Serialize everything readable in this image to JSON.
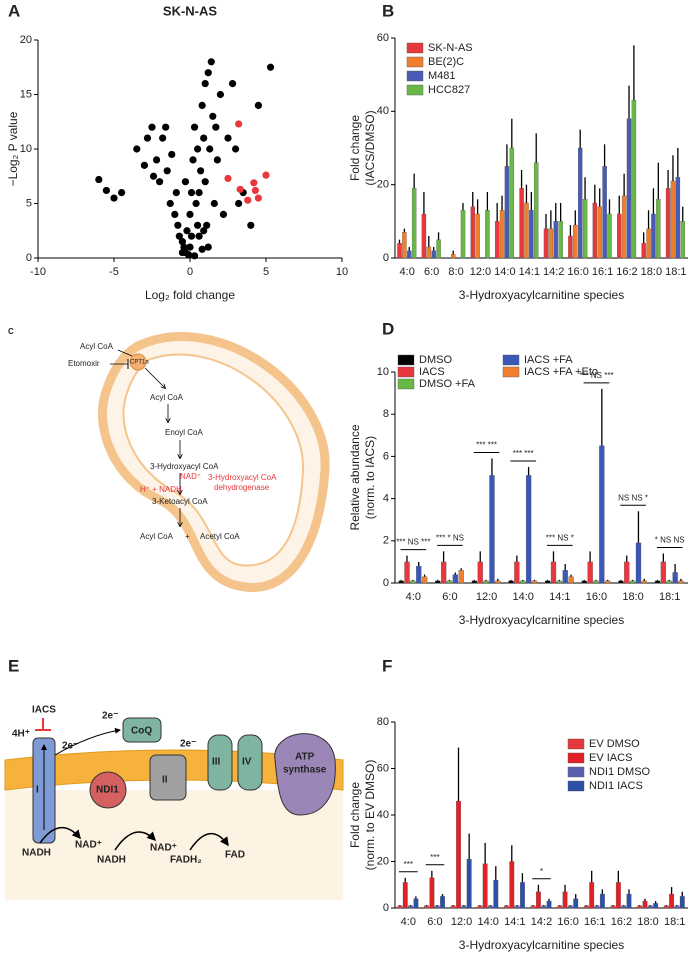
{
  "chart_data": [
    {
      "type": "scatter",
      "panel": "A",
      "title": "SK-N-AS",
      "xlabel": "Log₂ fold change",
      "ylabel": [
        "−Log₂ P value"
      ],
      "xlim": [
        -10,
        10
      ],
      "xticks": [
        -10,
        -5,
        0,
        5,
        10
      ],
      "ylim": [
        0,
        20
      ],
      "yticks": [
        0,
        5,
        10,
        15,
        20
      ],
      "series": [
        {
          "color": "#000000",
          "x": [
            -6,
            -5.5,
            -5,
            -4.5,
            -3.5,
            -3,
            -2.8,
            -2.5,
            -2.2,
            -2,
            -1.8,
            -1.5,
            -1.3,
            -1.2,
            -1,
            -0.9,
            -0.8,
            -0.7,
            -0.5,
            -0.4,
            -0.3,
            -0.2,
            -0.1,
            0,
            0,
            0.1,
            0.2,
            0.3,
            0.4,
            0.5,
            0.6,
            0.7,
            0.8,
            0.9,
            1,
            1,
            1.1,
            1.2,
            1.3,
            1.5,
            1.6,
            1.8,
            2,
            2.2,
            2.5,
            3,
            3.5,
            4,
            4.5,
            5.3,
            -0.5,
            0.3,
            0.8,
            1.2,
            0.5,
            -0.3,
            0.1,
            0.6,
            1.4,
            0.9,
            2.8,
            3.2,
            -1.6,
            -2.4,
            1.7
          ],
          "y": [
            7.2,
            6.2,
            5.5,
            6,
            10,
            8.5,
            11,
            12,
            9,
            7,
            11,
            8,
            5,
            9.5,
            4,
            6,
            3,
            2,
            1.5,
            1,
            0.5,
            2.5,
            0.3,
            1,
            4,
            6,
            9,
            12,
            5,
            3,
            2,
            8,
            14,
            11,
            16,
            7,
            3,
            1,
            10,
            13,
            5,
            9,
            15,
            4,
            11,
            10,
            6,
            3,
            14,
            17.5,
            0.5,
            0.2,
            0.8,
            17,
            10,
            7,
            2,
            6,
            18,
            2.5,
            16,
            5,
            12,
            7.5,
            12
          ]
        },
        {
          "color": "#e8383d",
          "x": [
            3.2,
            2.5,
            3.3,
            4.2,
            4.5,
            5.0,
            4.3,
            3.8
          ],
          "y": [
            12.3,
            7.3,
            6.3,
            6.9,
            5.5,
            7.6,
            6.2,
            5.3
          ]
        }
      ]
    },
    {
      "type": "bar",
      "panel": "B",
      "xlabel": "3-Hydroxyacylcarnitine species",
      "ylabel": [
        "Fold change",
        "(IACS/DMSO)"
      ],
      "ylim": [
        0,
        60
      ],
      "yticks": [
        0,
        20,
        40,
        60
      ],
      "legend": "upper left",
      "categories": [
        "4:0",
        "6:0",
        "8:0",
        "12:0",
        "14:0",
        "14:1",
        "14:2",
        "16:0",
        "16:1",
        "16:2",
        "18:0",
        "18:1"
      ],
      "series": [
        {
          "name": "SK-N-AS",
          "color": "#e8383d",
          "values": [
            4,
            12,
            0,
            14,
            10,
            19,
            8,
            6,
            15,
            12,
            4,
            19
          ],
          "errors": [
            1,
            6,
            0,
            4,
            5,
            5,
            4,
            3,
            5,
            5,
            3,
            5
          ]
        },
        {
          "name": "BE(2)C",
          "color": "#f07f2d",
          "values": [
            7,
            3,
            1,
            12,
            13,
            15,
            8,
            9,
            14,
            17,
            8,
            21
          ],
          "errors": [
            1,
            3,
            1,
            4,
            4,
            5,
            5,
            4,
            5,
            6,
            5,
            7
          ]
        },
        {
          "name": "M481",
          "color": "#4a5bb5",
          "values": [
            2,
            2,
            0,
            0,
            25,
            13,
            10,
            30,
            25,
            38,
            12,
            22
          ],
          "errors": [
            1,
            1,
            0,
            0,
            6,
            5,
            5,
            5,
            6,
            9,
            7,
            8
          ]
        },
        {
          "name": "HCC827",
          "color": "#68b845",
          "values": [
            19,
            5,
            13,
            13,
            30,
            26,
            10,
            16,
            12,
            43,
            16,
            10
          ],
          "errors": [
            4,
            2,
            2,
            5,
            8,
            8,
            5,
            6,
            4,
            15,
            10,
            4
          ]
        }
      ]
    },
    {
      "type": "bar",
      "panel": "D",
      "xlabel": "3-Hydroxyacylcarnitine species",
      "ylabel": [
        "Relative abundance",
        "(norm. to IACS)"
      ],
      "ylim": [
        0,
        10
      ],
      "yticks": [
        0,
        2,
        4,
        6,
        8,
        10
      ],
      "legend": "top",
      "categories": [
        "4:0",
        "6:0",
        "12:0",
        "14:0",
        "14:1",
        "16:0",
        "18:0",
        "18:1"
      ],
      "annotations": [
        "*** NS ***",
        "*** * NS",
        "*** ***",
        "*** ***",
        "*** NS *",
        "*** NS ***",
        "NS NS *",
        "* NS NS"
      ],
      "series": [
        {
          "name": "DMSO",
          "color": "#000000",
          "values": [
            0.1,
            0.1,
            0.1,
            0.1,
            0.1,
            0.1,
            0.1,
            0.1
          ],
          "errors": [
            0.05,
            0.05,
            0.05,
            0.05,
            0.05,
            0.05,
            0.05,
            0.05
          ]
        },
        {
          "name": "IACS",
          "color": "#e8383d",
          "values": [
            1,
            1,
            1,
            1,
            1,
            1,
            1,
            1
          ],
          "errors": [
            0.3,
            0.5,
            0.5,
            0.3,
            0.5,
            0.5,
            0.3,
            0.4
          ]
        },
        {
          "name": "DMSO +FA",
          "color": "#68b845",
          "values": [
            0.1,
            0.1,
            0.1,
            0.1,
            0.1,
            0.1,
            0.1,
            0.1
          ],
          "errors": [
            0.05,
            0.05,
            0.05,
            0.05,
            0.05,
            0.05,
            0.05,
            0.05
          ]
        },
        {
          "name": "IACS +FA",
          "color": "#3b57b8",
          "values": [
            0.8,
            0.4,
            5.1,
            5.1,
            0.6,
            6.5,
            1.9,
            0.5
          ],
          "errors": [
            0.2,
            0.1,
            0.8,
            0.4,
            0.3,
            2.7,
            1.5,
            0.4
          ]
        },
        {
          "name": "IACS +FA +Eto",
          "color": "#f07f2d",
          "values": [
            0.3,
            0.6,
            0.1,
            0.1,
            0.3,
            0.1,
            0.1,
            0.1
          ],
          "errors": [
            0.1,
            0.1,
            0.1,
            0.05,
            0.1,
            0.05,
            0.1,
            0.1
          ]
        }
      ]
    },
    {
      "type": "bar",
      "panel": "F",
      "xlabel": "3-Hydroxyacylcarnitine species",
      "ylabel": [
        "Fold change",
        "(norm. to EV DMSO)"
      ],
      "ylim": [
        0,
        80
      ],
      "yticks": [
        0,
        20,
        40,
        60,
        80
      ],
      "legend": "upper right",
      "categories": [
        "4:0",
        "6:0",
        "12:0",
        "14:0",
        "14:1",
        "14:2",
        "16:0",
        "16:1",
        "16:2",
        "18:0",
        "18:1"
      ],
      "annotations": [
        "***",
        "***",
        null,
        null,
        null,
        "*",
        null,
        null,
        null,
        null,
        null
      ],
      "series": [
        {
          "name": "EV DMSO",
          "color": "#e8383d",
          "values": [
            1,
            1,
            1,
            1,
            1,
            1,
            1,
            1,
            1,
            1,
            1
          ],
          "errors": [
            0.3,
            0.3,
            0.3,
            0.3,
            0.3,
            0.3,
            0.3,
            0.3,
            0.3,
            0.3,
            0.3
          ]
        },
        {
          "name": "EV IACS",
          "color": "#e42027",
          "values": [
            11,
            13,
            46,
            19,
            20,
            7,
            7,
            11,
            11,
            3,
            6
          ],
          "errors": [
            2,
            3,
            23,
            9,
            7,
            3,
            3,
            5,
            5,
            1,
            3
          ]
        },
        {
          "name": "NDI1 DMSO",
          "color": "#5b5fb0",
          "values": [
            1,
            1,
            1,
            1,
            1,
            1,
            1,
            1,
            1,
            1,
            1
          ],
          "errors": [
            0.3,
            0.3,
            0.3,
            0.3,
            0.3,
            0.3,
            0.3,
            0.3,
            0.3,
            0.3,
            0.3
          ]
        },
        {
          "name": "NDI1 IACS",
          "color": "#2d4fa8",
          "values": [
            4,
            5,
            21,
            12,
            11,
            3,
            4,
            6,
            6,
            2,
            5
          ],
          "errors": [
            1,
            1,
            11,
            6,
            4,
            1,
            2,
            2,
            2,
            1,
            2
          ]
        }
      ]
    }
  ],
  "diagram_c": {
    "panel": "C",
    "labels": {
      "acyl_coa_in": "Acyl CoA",
      "etomoxir": "Etomoxir",
      "cpt1a": "CPT1a",
      "acyl_coa": "Acyl CoA",
      "enoyl_coa": "Enoyl CoA",
      "hydroxyacyl_coa": "3-Hydroxyacyl CoA",
      "nad": "NAD⁺",
      "h_nadh": "H⁺ + NADH",
      "enzyme_1": "3-Hydroxyacyl CoA",
      "enzyme_2": "dehydrogenase",
      "ketoacyl_coa": "3-Ketoacyl CoA",
      "acyl_coa_out": "Acyl CoA",
      "plus": "+",
      "acetyl_coa": "Acetyl CoA"
    }
  },
  "diagram_e": {
    "panel": "E",
    "labels": {
      "iacs": "IACS",
      "protons": "4H⁺",
      "e1": "2e⁻",
      "e2": "2e⁻",
      "e3": "2e⁻",
      "coq": "CoQ",
      "c1": "I",
      "ndi1": "NDI1",
      "c2": "II",
      "c3": "III",
      "c4": "IV",
      "atp1": "ATP",
      "atp2": "synthase",
      "nadh1": "NADH",
      "nad1": "NAD⁺",
      "nadh2": "NADH",
      "nad2": "NAD⁺",
      "fadh2": "FADH₂",
      "fad": "FAD"
    }
  }
}
